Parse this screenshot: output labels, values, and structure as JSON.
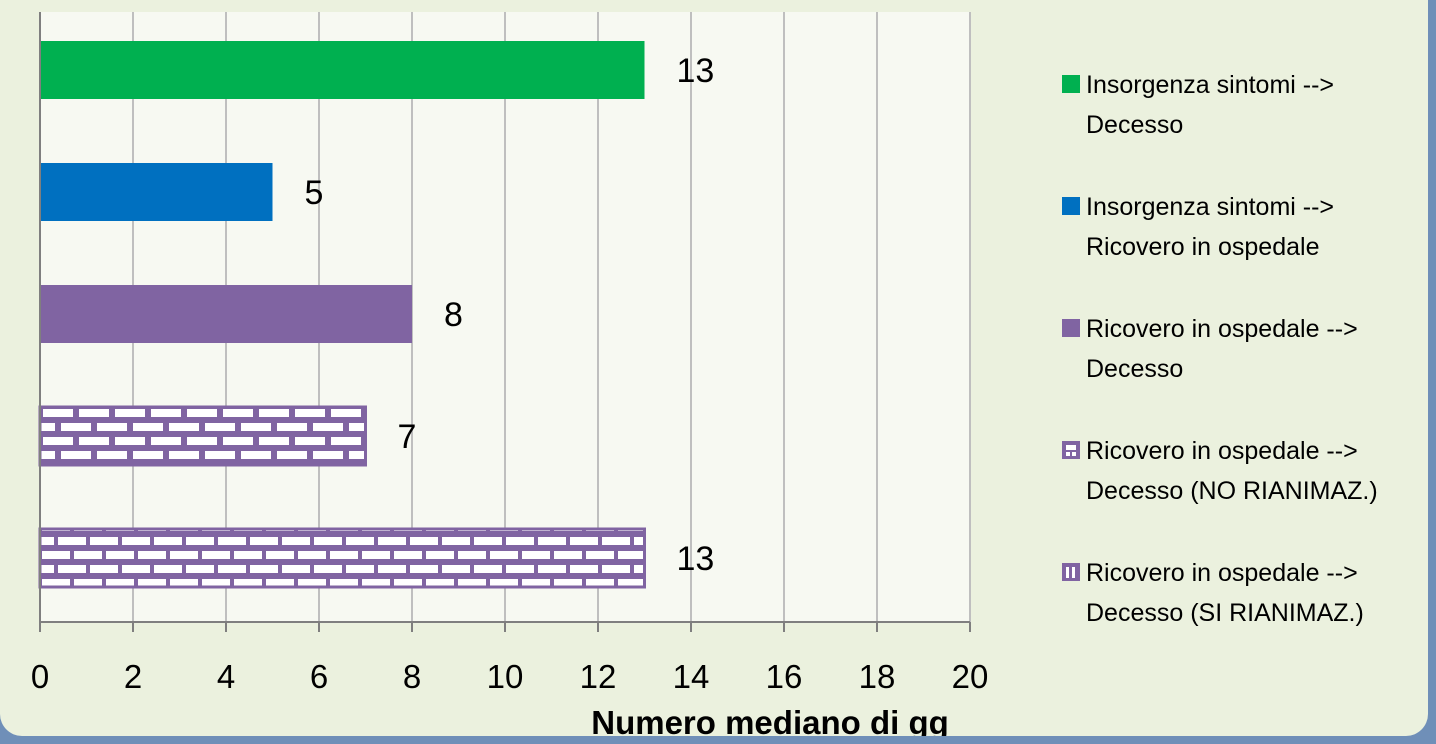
{
  "chart_data": {
    "type": "bar",
    "orientation": "horizontal",
    "title": "",
    "xlabel": "Numero mediano di gg",
    "ylabel": "",
    "xlim": [
      0,
      20
    ],
    "x_ticks": [
      0,
      2,
      4,
      6,
      8,
      10,
      12,
      14,
      16,
      18,
      20
    ],
    "grid": true,
    "legend_position": "right",
    "series": [
      {
        "name": "Insorgenza sintomi --> Decesso",
        "legend_lines": [
          "Insorgenza sintomi -->",
          "Decesso"
        ],
        "value": 13,
        "color": "#00b050",
        "pattern": "solid"
      },
      {
        "name": "Insorgenza sintomi --> Ricovero in ospedale",
        "legend_lines": [
          "Insorgenza sintomi -->",
          "Ricovero in ospedale"
        ],
        "value": 5,
        "color": "#0070c0",
        "pattern": "solid"
      },
      {
        "name": "Ricovero in ospedale --> Decesso",
        "legend_lines": [
          "Ricovero in ospedale -->",
          "Decesso"
        ],
        "value": 8,
        "color": "#8064a2",
        "pattern": "solid"
      },
      {
        "name": "Ricovero in ospedale --> Decesso (NO RIANIMAZ.)",
        "legend_lines": [
          "Ricovero in ospedale -->",
          "Decesso (NO RIANIMAZ.)"
        ],
        "value": 7,
        "color": "#8064a2",
        "pattern": "brick-large"
      },
      {
        "name": "Ricovero in ospedale --> Decesso (SI RIANIMAZ.)",
        "legend_lines": [
          "Ricovero in ospedale -->",
          "Decesso (SI RIANIMAZ.)"
        ],
        "value": 13,
        "color": "#8064a2",
        "pattern": "brick-small"
      }
    ]
  }
}
